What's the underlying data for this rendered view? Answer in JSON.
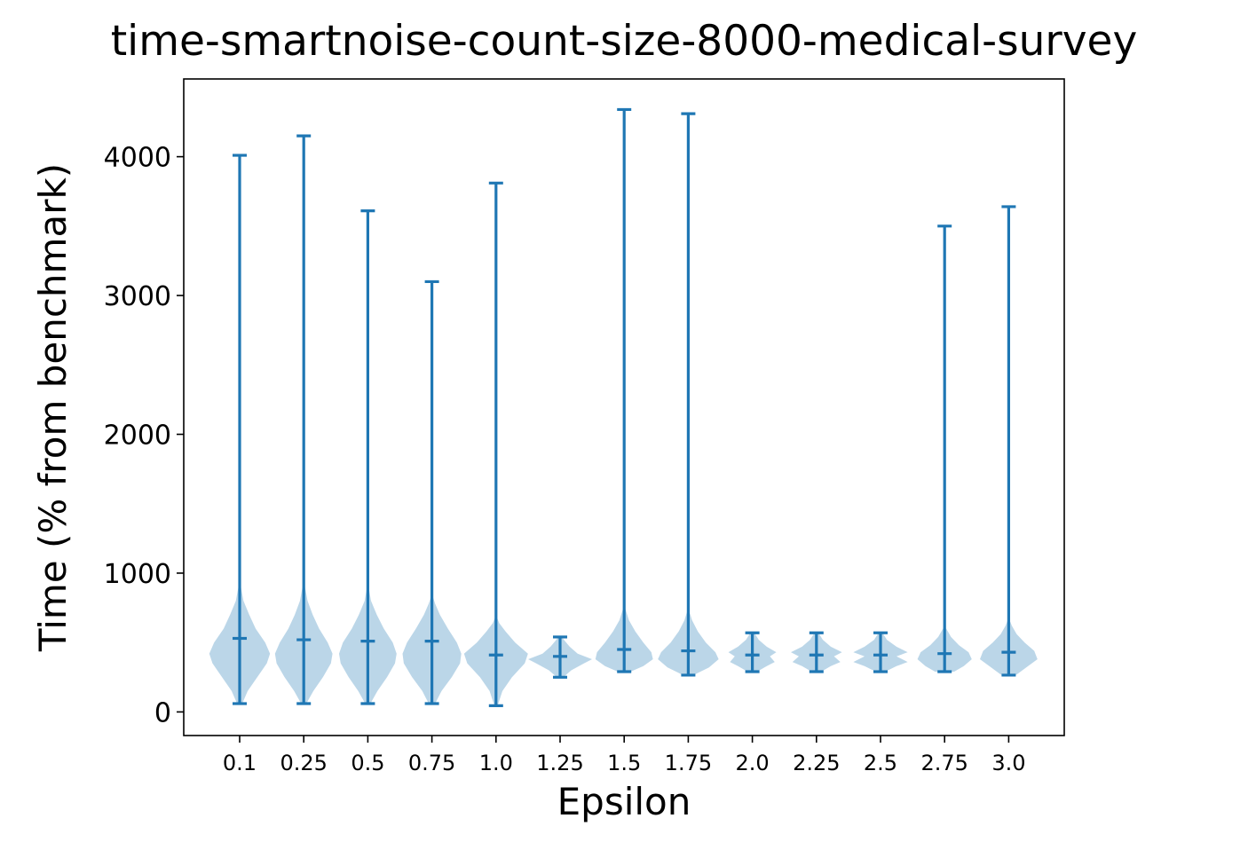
{
  "chart_data": {
    "type": "violin",
    "title": "time-smartnoise-count-size-8000-medical-survey",
    "xlabel": "Epsilon",
    "ylabel": "Time (% from benchmark)",
    "ylim": [
      -170,
      4560
    ],
    "yticks": [
      0,
      1000,
      2000,
      3000,
      4000
    ],
    "grid": false,
    "colors": {
      "body": "#1f77b4",
      "body_opacity": 0.3,
      "lines": "#1f77b4"
    },
    "categories": [
      "0.1",
      "0.25",
      "0.5",
      "0.75",
      "1.0",
      "1.25",
      "1.5",
      "1.75",
      "2.0",
      "2.25",
      "2.5",
      "2.75",
      "3.0"
    ],
    "series": [
      {
        "category": "0.1",
        "min": 60,
        "max": 4010,
        "mean": 530,
        "density": [
          [
            60,
            0.08
          ],
          [
            150,
            0.25
          ],
          [
            250,
            0.55
          ],
          [
            350,
            0.85
          ],
          [
            420,
            0.95
          ],
          [
            500,
            0.8
          ],
          [
            600,
            0.5
          ],
          [
            700,
            0.3
          ],
          [
            800,
            0.12
          ],
          [
            900,
            0.04
          ]
        ]
      },
      {
        "category": "0.25",
        "min": 60,
        "max": 4150,
        "mean": 520,
        "density": [
          [
            60,
            0.08
          ],
          [
            150,
            0.3
          ],
          [
            250,
            0.6
          ],
          [
            350,
            0.85
          ],
          [
            420,
            0.9
          ],
          [
            500,
            0.75
          ],
          [
            600,
            0.48
          ],
          [
            700,
            0.28
          ],
          [
            800,
            0.12
          ],
          [
            900,
            0.04
          ]
        ]
      },
      {
        "category": "0.5",
        "min": 60,
        "max": 3610,
        "mean": 510,
        "density": [
          [
            60,
            0.08
          ],
          [
            150,
            0.3
          ],
          [
            250,
            0.6
          ],
          [
            350,
            0.85
          ],
          [
            420,
            0.9
          ],
          [
            500,
            0.78
          ],
          [
            600,
            0.5
          ],
          [
            700,
            0.28
          ],
          [
            800,
            0.1
          ],
          [
            880,
            0.04
          ]
        ]
      },
      {
        "category": "0.75",
        "min": 60,
        "max": 3100,
        "mean": 510,
        "density": [
          [
            60,
            0.1
          ],
          [
            150,
            0.3
          ],
          [
            250,
            0.62
          ],
          [
            350,
            0.88
          ],
          [
            420,
            0.92
          ],
          [
            500,
            0.78
          ],
          [
            600,
            0.5
          ],
          [
            700,
            0.25
          ],
          [
            780,
            0.1
          ],
          [
            830,
            0.03
          ]
        ]
      },
      {
        "category": "1.0",
        "min": 45,
        "max": 3810,
        "mean": 410,
        "density": [
          [
            45,
            0.05
          ],
          [
            150,
            0.2
          ],
          [
            250,
            0.5
          ],
          [
            350,
            0.9
          ],
          [
            420,
            1.0
          ],
          [
            500,
            0.6
          ],
          [
            580,
            0.3
          ],
          [
            640,
            0.1
          ],
          [
            680,
            0.03
          ]
        ]
      },
      {
        "category": "1.25",
        "min": 250,
        "max": 540,
        "mean": 400,
        "density": [
          [
            260,
            0.15
          ],
          [
            300,
            0.35
          ],
          [
            350,
            0.75
          ],
          [
            380,
            1.0
          ],
          [
            420,
            0.55
          ],
          [
            470,
            0.3
          ],
          [
            520,
            0.12
          ],
          [
            540,
            0.05
          ]
        ]
      },
      {
        "category": "1.5",
        "min": 290,
        "max": 4340,
        "mean": 450,
        "density": [
          [
            290,
            0.2
          ],
          [
            330,
            0.6
          ],
          [
            380,
            0.9
          ],
          [
            430,
            0.85
          ],
          [
            500,
            0.6
          ],
          [
            580,
            0.35
          ],
          [
            660,
            0.15
          ],
          [
            740,
            0.04
          ]
        ]
      },
      {
        "category": "1.75",
        "min": 265,
        "max": 4310,
        "mean": 440,
        "density": [
          [
            270,
            0.2
          ],
          [
            320,
            0.65
          ],
          [
            380,
            0.95
          ],
          [
            430,
            0.85
          ],
          [
            500,
            0.55
          ],
          [
            580,
            0.3
          ],
          [
            660,
            0.12
          ],
          [
            720,
            0.04
          ]
        ]
      },
      {
        "category": "2.0",
        "min": 290,
        "max": 570,
        "mean": 410,
        "density": [
          [
            290,
            0.15
          ],
          [
            330,
            0.45
          ],
          [
            360,
            0.7
          ],
          [
            400,
            0.55
          ],
          [
            430,
            0.75
          ],
          [
            470,
            0.45
          ],
          [
            520,
            0.2
          ],
          [
            570,
            0.06
          ]
        ]
      },
      {
        "category": "2.25",
        "min": 290,
        "max": 570,
        "mean": 410,
        "density": [
          [
            290,
            0.15
          ],
          [
            330,
            0.45
          ],
          [
            360,
            0.75
          ],
          [
            400,
            0.55
          ],
          [
            430,
            0.8
          ],
          [
            470,
            0.45
          ],
          [
            520,
            0.2
          ],
          [
            570,
            0.06
          ]
        ]
      },
      {
        "category": "2.5",
        "min": 290,
        "max": 570,
        "mean": 410,
        "density": [
          [
            290,
            0.15
          ],
          [
            330,
            0.5
          ],
          [
            360,
            0.85
          ],
          [
            400,
            0.5
          ],
          [
            430,
            0.85
          ],
          [
            470,
            0.5
          ],
          [
            520,
            0.2
          ],
          [
            570,
            0.06
          ]
        ]
      },
      {
        "category": "2.75",
        "min": 290,
        "max": 3500,
        "mean": 420,
        "density": [
          [
            290,
            0.3
          ],
          [
            330,
            0.6
          ],
          [
            380,
            0.85
          ],
          [
            430,
            0.75
          ],
          [
            480,
            0.45
          ],
          [
            540,
            0.2
          ],
          [
            600,
            0.05
          ]
        ]
      },
      {
        "category": "3.0",
        "min": 265,
        "max": 3640,
        "mean": 430,
        "density": [
          [
            270,
            0.25
          ],
          [
            320,
            0.55
          ],
          [
            380,
            0.9
          ],
          [
            440,
            0.8
          ],
          [
            500,
            0.5
          ],
          [
            560,
            0.25
          ],
          [
            620,
            0.1
          ],
          [
            660,
            0.03
          ]
        ]
      }
    ]
  }
}
